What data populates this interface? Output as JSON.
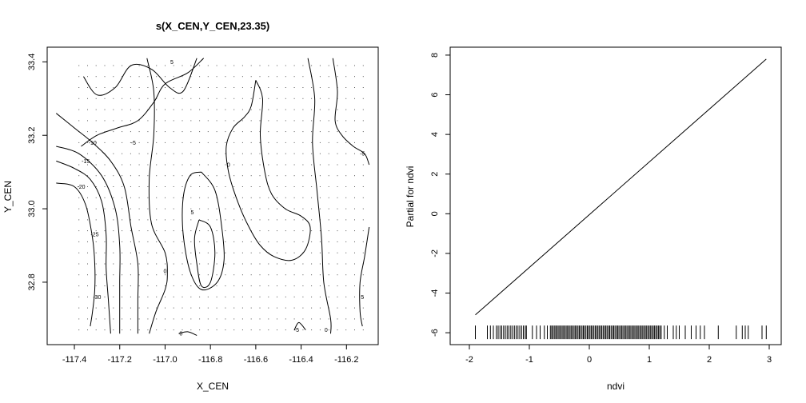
{
  "chart_data": [
    {
      "type": "contour",
      "title": "s(X_CEN,Y_CEN,23.35)",
      "xlabel": "X_CEN",
      "ylabel": "Y_CEN",
      "xlim": [
        -117.52,
        -116.06
      ],
      "ylim": [
        32.63,
        33.44
      ],
      "xticks": [
        -117.4,
        -117.2,
        -117.0,
        -116.8,
        -116.6,
        -116.4,
        -116.2
      ],
      "xtick_labels": [
        "-117.4",
        "-117.2",
        "-117.0",
        "-116.8",
        "-116.6",
        "-116.4",
        "-116.2"
      ],
      "yticks": [
        32.8,
        33.0,
        33.2,
        33.4
      ],
      "ytick_labels": [
        "32.8",
        "33.0",
        "33.2",
        "33.4"
      ],
      "grid_points": {
        "x_from": -117.38,
        "x_to": -116.1,
        "x_step": 0.038,
        "y_from": 32.67,
        "y_to": 33.4,
        "y_step": 0.03
      },
      "contours": [
        {
          "level": 5,
          "points": [
            [
              -117.36,
              33.36
            ],
            [
              -117.3,
              33.31
            ],
            [
              -117.22,
              33.33
            ],
            [
              -117.15,
              33.39
            ],
            [
              -117.06,
              33.38
            ],
            [
              -116.98,
              33.33
            ],
            [
              -116.92,
              33.32
            ],
            [
              -116.86,
              33.41
            ]
          ]
        },
        {
          "level": -5,
          "points": [
            [
              -117.37,
              33.17
            ],
            [
              -117.3,
              33.2
            ],
            [
              -117.21,
              33.22
            ],
            [
              -117.12,
              33.24
            ],
            [
              -117.05,
              33.29
            ],
            [
              -117.0,
              33.34
            ],
            [
              -116.9,
              33.37
            ],
            [
              -116.83,
              33.41
            ]
          ]
        },
        {
          "level": -10,
          "points": [
            [
              -117.48,
              33.26
            ],
            [
              -117.4,
              33.22
            ],
            [
              -117.32,
              33.18
            ],
            [
              -117.24,
              33.13
            ],
            [
              -117.18,
              33.06
            ],
            [
              -117.15,
              32.95
            ],
            [
              -117.12,
              32.85
            ],
            [
              -117.12,
              32.75
            ],
            [
              -117.12,
              32.66
            ]
          ]
        },
        {
          "level": -15,
          "points": [
            [
              -117.48,
              33.17
            ],
            [
              -117.38,
              33.15
            ],
            [
              -117.28,
              33.09
            ],
            [
              -117.22,
              33.0
            ],
            [
              -117.2,
              32.9
            ],
            [
              -117.2,
              32.8
            ],
            [
              -117.2,
              32.72
            ],
            [
              -117.2,
              32.66
            ]
          ]
        },
        {
          "level": -20,
          "points": [
            [
              -117.48,
              33.13
            ],
            [
              -117.4,
              33.11
            ],
            [
              -117.33,
              33.08
            ],
            [
              -117.28,
              33.02
            ],
            [
              -117.26,
              32.93
            ],
            [
              -117.26,
              32.84
            ],
            [
              -117.25,
              32.75
            ],
            [
              -117.24,
              32.66
            ]
          ]
        },
        {
          "level": -30,
          "points": [
            [
              -117.48,
              33.07
            ],
            [
              -117.4,
              33.06
            ],
            [
              -117.35,
              33.01
            ],
            [
              -117.32,
              32.92
            ],
            [
              -117.31,
              32.85
            ],
            [
              -117.31,
              32.78
            ],
            [
              -117.32,
              32.72
            ],
            [
              -117.33,
              32.68
            ]
          ]
        },
        {
          "level": 0,
          "points": [
            [
              -117.08,
              33.41
            ],
            [
              -117.05,
              33.32
            ],
            [
              -117.05,
              33.2
            ],
            [
              -117.07,
              33.08
            ],
            [
              -117.06,
              32.96
            ],
            [
              -117.0,
              32.88
            ],
            [
              -116.99,
              32.82
            ],
            [
              -117.0,
              32.78
            ],
            [
              -117.04,
              32.72
            ],
            [
              -117.07,
              32.66
            ]
          ]
        },
        {
          "level": 5,
          "points": [
            [
              -116.84,
              33.1
            ],
            [
              -116.78,
              33.05
            ],
            [
              -116.75,
              32.95
            ],
            [
              -116.74,
              32.86
            ],
            [
              -116.77,
              32.8
            ],
            [
              -116.84,
              32.78
            ],
            [
              -116.89,
              32.83
            ],
            [
              -116.92,
              32.93
            ],
            [
              -116.92,
              33.03
            ],
            [
              -116.89,
              33.09
            ],
            [
              -116.84,
              33.1
            ]
          ]
        },
        {
          "level": 5,
          "points": [
            [
              -116.85,
              32.97
            ],
            [
              -116.8,
              32.95
            ],
            [
              -116.78,
              32.88
            ],
            [
              -116.8,
              32.8
            ],
            [
              -116.84,
              32.79
            ],
            [
              -116.86,
              32.85
            ],
            [
              -116.87,
              32.92
            ],
            [
              -116.85,
              32.97
            ]
          ]
        },
        {
          "level": 0,
          "points": [
            [
              -116.6,
              33.35
            ],
            [
              -116.62,
              33.28
            ],
            [
              -116.65,
              33.25
            ],
            [
              -116.7,
              33.22
            ],
            [
              -116.73,
              33.17
            ],
            [
              -116.72,
              33.1
            ],
            [
              -116.68,
              33.02
            ],
            [
              -116.63,
              32.95
            ],
            [
              -116.58,
              32.9
            ],
            [
              -116.52,
              32.87
            ],
            [
              -116.44,
              32.86
            ],
            [
              -116.38,
              32.89
            ],
            [
              -116.36,
              32.95
            ],
            [
              -116.4,
              32.98
            ],
            [
              -116.47,
              33.0
            ],
            [
              -116.53,
              33.04
            ],
            [
              -116.56,
              33.1
            ],
            [
              -116.58,
              33.2
            ],
            [
              -116.57,
              33.3
            ],
            [
              -116.6,
              33.35
            ]
          ]
        },
        {
          "level": -5,
          "points": [
            [
              -116.26,
              33.41
            ],
            [
              -116.24,
              33.32
            ],
            [
              -116.25,
              33.24
            ],
            [
              -116.22,
              33.2
            ],
            [
              -116.17,
              33.17
            ],
            [
              -116.12,
              33.15
            ],
            [
              -116.1,
              33.12
            ]
          ]
        },
        {
          "level": 0,
          "points": [
            [
              -116.37,
              33.41
            ],
            [
              -116.34,
              33.3
            ],
            [
              -116.35,
              33.18
            ],
            [
              -116.33,
              33.05
            ],
            [
              -116.31,
              32.92
            ],
            [
              -116.3,
              32.8
            ],
            [
              -116.27,
              32.7
            ],
            [
              -116.27,
              32.66
            ]
          ]
        },
        {
          "level": 5,
          "points": [
            [
              -116.1,
              32.95
            ],
            [
              -116.12,
              32.87
            ],
            [
              -116.14,
              32.8
            ],
            [
              -116.14,
              32.72
            ],
            [
              -116.13,
              32.68
            ]
          ]
        },
        {
          "level": -5,
          "points": [
            [
              -116.43,
              32.67
            ],
            [
              -116.41,
              32.69
            ],
            [
              -116.38,
              32.67
            ]
          ]
        },
        {
          "level": 5,
          "points": [
            [
              -116.94,
              32.66
            ],
            [
              -116.9,
              32.665
            ],
            [
              -116.86,
              32.655
            ]
          ]
        }
      ],
      "contour_labels": [
        {
          "text": "5",
          "x": -116.97,
          "y": 33.4
        },
        {
          "text": "-5",
          "x": -117.14,
          "y": 33.18
        },
        {
          "text": "-10",
          "x": -117.32,
          "y": 33.18
        },
        {
          "text": "-15",
          "x": -117.35,
          "y": 33.13
        },
        {
          "text": "-20",
          "x": -117.37,
          "y": 33.06
        },
        {
          "text": "-25",
          "x": -117.31,
          "y": 32.93
        },
        {
          "text": "-30",
          "x": -117.3,
          "y": 32.76
        },
        {
          "text": "0",
          "x": -117.0,
          "y": 32.83
        },
        {
          "text": "5",
          "x": -116.88,
          "y": 32.99
        },
        {
          "text": "0",
          "x": -116.72,
          "y": 33.12
        },
        {
          "text": "-5",
          "x": -116.13,
          "y": 33.15
        },
        {
          "text": "5",
          "x": -116.13,
          "y": 32.76
        },
        {
          "text": "0",
          "x": -116.93,
          "y": 32.66
        },
        {
          "text": "-5",
          "x": -116.42,
          "y": 32.67
        },
        {
          "text": "0",
          "x": -116.29,
          "y": 32.67
        }
      ]
    },
    {
      "type": "line",
      "title": "",
      "xlabel": "ndvi",
      "ylabel": "Partial for ndvi",
      "xlim": [
        -2.32,
        3.2
      ],
      "ylim": [
        -6.6,
        8.4
      ],
      "xticks": [
        -2,
        -1,
        0,
        1,
        2,
        3
      ],
      "xtick_labels": [
        "-2",
        "-1",
        "0",
        "1",
        "2",
        "3"
      ],
      "yticks": [
        -6,
        -4,
        -2,
        0,
        2,
        4,
        6,
        8
      ],
      "ytick_labels": [
        "-6",
        "-4",
        "-2",
        "0",
        "2",
        "4",
        "6",
        "8"
      ],
      "x": [
        -1.9,
        2.95
      ],
      "y": [
        -5.1,
        7.8
      ],
      "rug": {
        "baseline": -6,
        "sparse_points": [
          -1.9,
          -1.7,
          -1.65,
          -1.6,
          -1.05,
          -0.95,
          -0.88,
          -0.82,
          -0.75,
          -0.7,
          1.25,
          1.3,
          1.4,
          1.45,
          1.5,
          1.6,
          1.7,
          1.78,
          1.85,
          1.92,
          2.15,
          2.45,
          2.55,
          2.6,
          2.65,
          2.88,
          2.95
        ],
        "dense_ranges": [
          [
            -1.55,
            -1.05,
            0.03
          ],
          [
            -0.65,
            1.2,
            0.022
          ]
        ]
      }
    }
  ]
}
